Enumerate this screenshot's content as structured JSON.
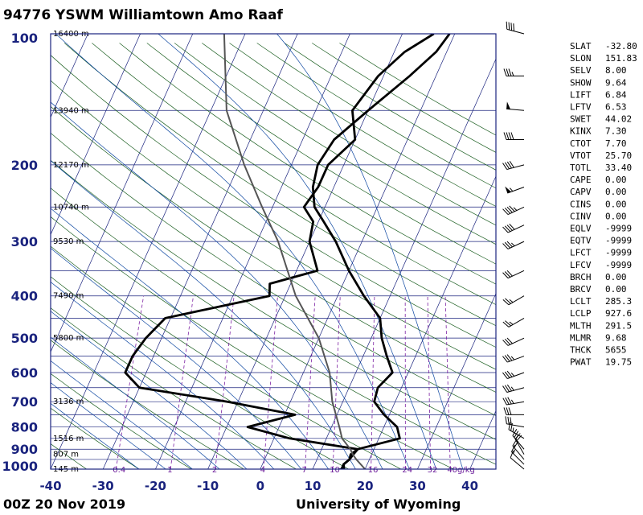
{
  "header": {
    "title": "94776 YSWM Williamtown Amo Raaf"
  },
  "footer": {
    "time": "00Z 20 Nov 2019",
    "credit": "University of Wyoming"
  },
  "chart_data": {
    "type": "line",
    "x_unit": "°C",
    "xlim": [
      -40,
      45
    ],
    "ylim_hPa": [
      1000,
      100
    ],
    "log_pressure_axis": true,
    "x_ticks": [
      "-40",
      "-30",
      "-20",
      "-10",
      "0",
      "10",
      "20",
      "30",
      "40"
    ],
    "pressure_ticks": [
      "100",
      "200",
      "300",
      "400",
      "500",
      "600",
      "700",
      "800",
      "900",
      "1000"
    ],
    "height_labels": [
      {
        "p": 100,
        "text": "16400 m"
      },
      {
        "p": 150,
        "text": "13940 m"
      },
      {
        "p": 200,
        "text": "12170 m"
      },
      {
        "p": 250,
        "text": "10740 m"
      },
      {
        "p": 300,
        "text": "9530 m"
      },
      {
        "p": 400,
        "text": "7490 m"
      },
      {
        "p": 500,
        "text": "5800 m"
      },
      {
        "p": 700,
        "text": "3136 m"
      },
      {
        "p": 850,
        "text": "1516 m"
      },
      {
        "p": 925,
        "text": "807 m"
      },
      {
        "p": 1000,
        "text": "145 m"
      }
    ],
    "mixing_ratio_labels": [
      "0.4",
      "1",
      "2",
      "4",
      "7",
      "10",
      "16",
      "24",
      "32",
      "40g/kg"
    ],
    "mixing_ratio_values": [
      0.4,
      1,
      2,
      4,
      7,
      10,
      16,
      24,
      32,
      40
    ],
    "series": [
      {
        "role": "temperature",
        "color": "#000000",
        "points": [
          [
            1009,
            14.2
          ],
          [
            1000,
            16
          ],
          [
            975,
            15.5
          ],
          [
            950,
            16.2
          ],
          [
            925,
            16.5
          ],
          [
            900,
            16.9
          ],
          [
            850,
            24
          ],
          [
            800,
            22.5
          ],
          [
            750,
            19
          ],
          [
            700,
            16
          ],
          [
            650,
            15.5
          ],
          [
            600,
            17
          ],
          [
            550,
            14.5
          ],
          [
            500,
            12
          ],
          [
            450,
            10
          ],
          [
            400,
            5
          ],
          [
            350,
            0
          ],
          [
            300,
            -5
          ],
          [
            270,
            -9
          ],
          [
            250,
            -12
          ],
          [
            225,
            -14
          ],
          [
            200,
            -15
          ],
          [
            175,
            -14
          ],
          [
            150,
            -10
          ],
          [
            125,
            -5
          ],
          [
            110,
            -2
          ],
          [
            100,
            -1
          ]
        ]
      },
      {
        "role": "dewpoint",
        "color": "#000000",
        "points": [
          [
            1009,
            14.2
          ],
          [
            1000,
            15.5
          ],
          [
            975,
            15.5
          ],
          [
            950,
            16.2
          ],
          [
            925,
            16
          ],
          [
            900,
            16.9
          ],
          [
            850,
            3
          ],
          [
            800,
            -6
          ],
          [
            750,
            2
          ],
          [
            700,
            -12
          ],
          [
            650,
            -30
          ],
          [
            600,
            -34
          ],
          [
            550,
            -34
          ],
          [
            500,
            -33
          ],
          [
            450,
            -31
          ],
          [
            400,
            -13
          ],
          [
            375,
            -14
          ],
          [
            350,
            -6
          ],
          [
            300,
            -10
          ],
          [
            270,
            -11
          ],
          [
            250,
            -14
          ],
          [
            225,
            -13
          ],
          [
            200,
            -13
          ],
          [
            175,
            -10
          ],
          [
            150,
            -13
          ],
          [
            125,
            -11
          ],
          [
            110,
            -8
          ],
          [
            100,
            -4
          ]
        ]
      },
      {
        "role": "parcel",
        "color": "#555555",
        "points": [
          [
            1009,
            21
          ],
          [
            1000,
            20
          ],
          [
            950,
            17.5
          ],
          [
            925,
            16.4
          ],
          [
            900,
            15.5
          ],
          [
            850,
            13
          ],
          [
            800,
            11.5
          ],
          [
            700,
            8
          ],
          [
            600,
            5
          ],
          [
            500,
            0
          ],
          [
            400,
            -8
          ],
          [
            300,
            -16
          ],
          [
            250,
            -22
          ],
          [
            200,
            -29
          ],
          [
            150,
            -37
          ],
          [
            100,
            -44
          ]
        ]
      }
    ],
    "wind_barbs": [
      {
        "p": 1000,
        "dir": 310,
        "spd": 10
      },
      {
        "p": 975,
        "dir": 315,
        "spd": 15
      },
      {
        "p": 950,
        "dir": 320,
        "spd": 20
      },
      {
        "p": 925,
        "dir": 330,
        "spd": 20
      },
      {
        "p": 900,
        "dir": 320,
        "spd": 25
      },
      {
        "p": 850,
        "dir": 300,
        "spd": 25
      },
      {
        "p": 800,
        "dir": 280,
        "spd": 30
      },
      {
        "p": 750,
        "dir": 270,
        "spd": 30
      },
      {
        "p": 700,
        "dir": 260,
        "spd": 35
      },
      {
        "p": 650,
        "dir": 255,
        "spd": 35
      },
      {
        "p": 600,
        "dir": 250,
        "spd": 35
      },
      {
        "p": 550,
        "dir": 250,
        "spd": 35
      },
      {
        "p": 500,
        "dir": 245,
        "spd": 30
      },
      {
        "p": 450,
        "dir": 240,
        "spd": 25
      },
      {
        "p": 400,
        "dir": 240,
        "spd": 25
      },
      {
        "p": 350,
        "dir": 245,
        "spd": 30
      },
      {
        "p": 300,
        "dir": 245,
        "spd": 35
      },
      {
        "p": 275,
        "dir": 245,
        "spd": 40
      },
      {
        "p": 250,
        "dir": 245,
        "spd": 45
      },
      {
        "p": 225,
        "dir": 250,
        "spd": 55
      },
      {
        "p": 200,
        "dir": 255,
        "spd": 40
      },
      {
        "p": 175,
        "dir": 270,
        "spd": 40
      },
      {
        "p": 150,
        "dir": 275,
        "spd": 50
      },
      {
        "p": 125,
        "dir": 270,
        "spd": 35
      },
      {
        "p": 100,
        "dir": 285,
        "spd": 40
      }
    ],
    "lines": {
      "isotherm_color": "#1a237e",
      "dry_adiabat_color": "#1b5e20",
      "moist_adiabat_color": "#0d47a1",
      "mixing_ratio_color": "#7b1fa2"
    }
  },
  "indices": [
    [
      "SLAT",
      "-32.80"
    ],
    [
      "SLON",
      "151.83"
    ],
    [
      "SELV",
      "8.00"
    ],
    [
      "SHOW",
      "9.64"
    ],
    [
      "LIFT",
      "6.84"
    ],
    [
      "LFTV",
      "6.53"
    ],
    [
      "SWET",
      "44.02"
    ],
    [
      "KINX",
      "7.30"
    ],
    [
      "CTOT",
      "7.70"
    ],
    [
      "VTOT",
      "25.70"
    ],
    [
      "TOTL",
      "33.40"
    ],
    [
      "CAPE",
      "0.00"
    ],
    [
      "CAPV",
      "0.00"
    ],
    [
      "CINS",
      "0.00"
    ],
    [
      "CINV",
      "0.00"
    ],
    [
      "EQLV",
      "-9999"
    ],
    [
      "EQTV",
      "-9999"
    ],
    [
      "LFCT",
      "-9999"
    ],
    [
      "LFCV",
      "-9999"
    ],
    [
      "BRCH",
      "0.00"
    ],
    [
      "BRCV",
      "0.00"
    ],
    [
      "LCLT",
      "285.3"
    ],
    [
      "LCLP",
      "927.6"
    ],
    [
      "MLTH",
      "291.5"
    ],
    [
      "MLMR",
      "9.68"
    ],
    [
      "THCK",
      "5655"
    ],
    [
      "PWAT",
      "19.75"
    ]
  ]
}
